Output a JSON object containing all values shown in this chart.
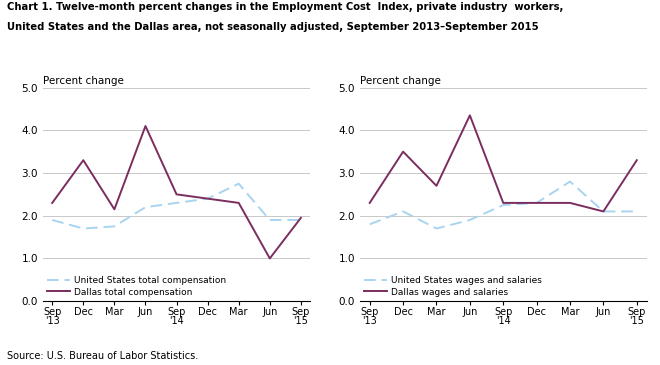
{
  "title_line1": "Chart 1. Twelve-month percent changes in the Employment Cost  Index, private industry  workers,",
  "title_line2": "United States and the Dallas area, not seasonally adjusted, September 2013–September 2015",
  "ylabel": "Percent change",
  "source": "Source: U.S. Bureau of Labor Statistics.",
  "x_labels": [
    "Sep\n'13",
    "Dec",
    "Mar",
    "Jun",
    "Sep\n'14",
    "Dec",
    "Mar",
    "Jun",
    "Sep\n'15"
  ],
  "x_positions": [
    0,
    1,
    2,
    3,
    4,
    5,
    6,
    7,
    8
  ],
  "chart1": {
    "us_total": [
      1.9,
      1.7,
      1.75,
      2.2,
      2.3,
      2.4,
      2.75,
      1.9,
      1.9
    ],
    "dallas_total": [
      2.3,
      3.3,
      2.15,
      4.1,
      2.5,
      2.4,
      2.3,
      1.0,
      1.95
    ],
    "legend1": "United States total compensation",
    "legend2": "Dallas total compensation"
  },
  "chart2": {
    "us_wages": [
      1.8,
      2.1,
      1.7,
      1.9,
      2.25,
      2.3,
      2.8,
      2.1,
      2.1
    ],
    "dallas_wages": [
      2.3,
      3.5,
      2.7,
      4.35,
      2.3,
      2.3,
      2.3,
      2.1,
      3.3
    ],
    "legend1": "United States wages and salaries",
    "legend2": "Dallas wages and salaries"
  },
  "ylim": [
    0.0,
    5.0
  ],
  "yticks": [
    0.0,
    1.0,
    2.0,
    3.0,
    4.0,
    5.0
  ],
  "us_color": "#a8d4f0",
  "dallas_color": "#7b2d5e",
  "background_color": "#ffffff",
  "grid_color": "#c8c8c8"
}
